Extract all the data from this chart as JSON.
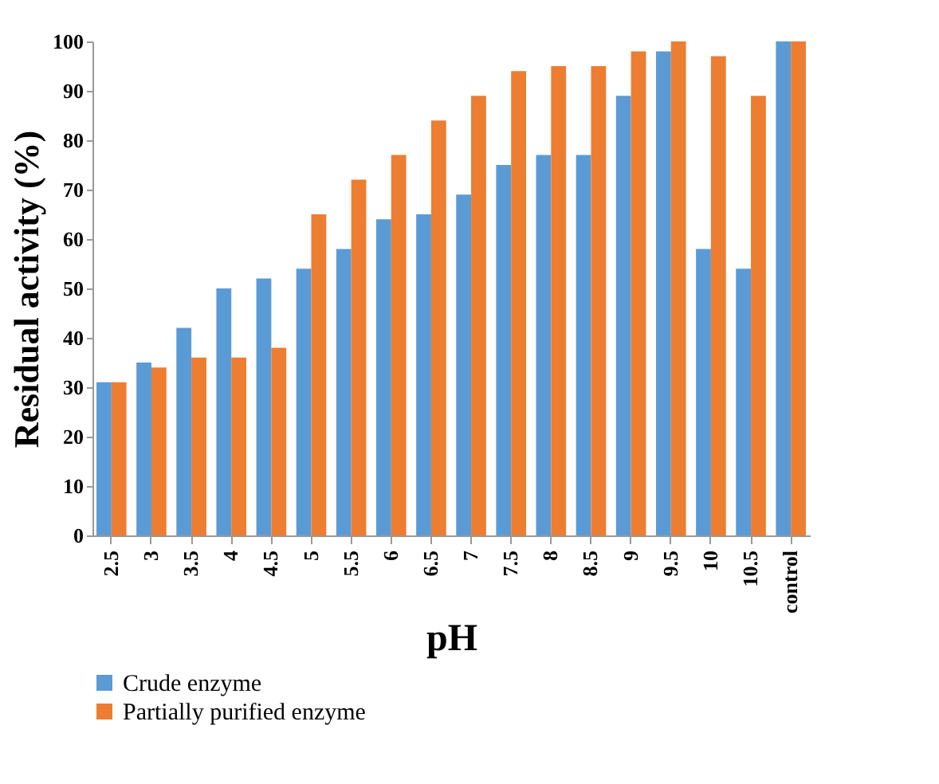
{
  "chart_data": {
    "type": "bar",
    "xlabel": "pH",
    "ylabel": "Residual activity (%)",
    "categories": [
      "2.5",
      "3",
      "3.5",
      "4",
      "4.5",
      "5",
      "5.5",
      "6",
      "6.5",
      "7",
      "7.5",
      "8",
      "8.5",
      "9",
      "9.5",
      "10",
      "10.5",
      "control"
    ],
    "series": [
      {
        "name": "Crude enzyme",
        "color": "#5b9bd5",
        "values": [
          31,
          35,
          42,
          50,
          52,
          54,
          58,
          64,
          65,
          69,
          75,
          77,
          77,
          89,
          98,
          58,
          54,
          100
        ]
      },
      {
        "name": "Partially purified enzyme",
        "color": "#ed7d31",
        "values": [
          31,
          34,
          36,
          36,
          38,
          65,
          72,
          77,
          84,
          89,
          94,
          95,
          95,
          98,
          100,
          97,
          89,
          100
        ]
      }
    ],
    "ylim": [
      0,
      100
    ],
    "yticks": [
      0,
      10,
      20,
      30,
      40,
      50,
      60,
      70,
      80,
      90,
      100
    ],
    "grid": false,
    "legend": "bottom left"
  }
}
